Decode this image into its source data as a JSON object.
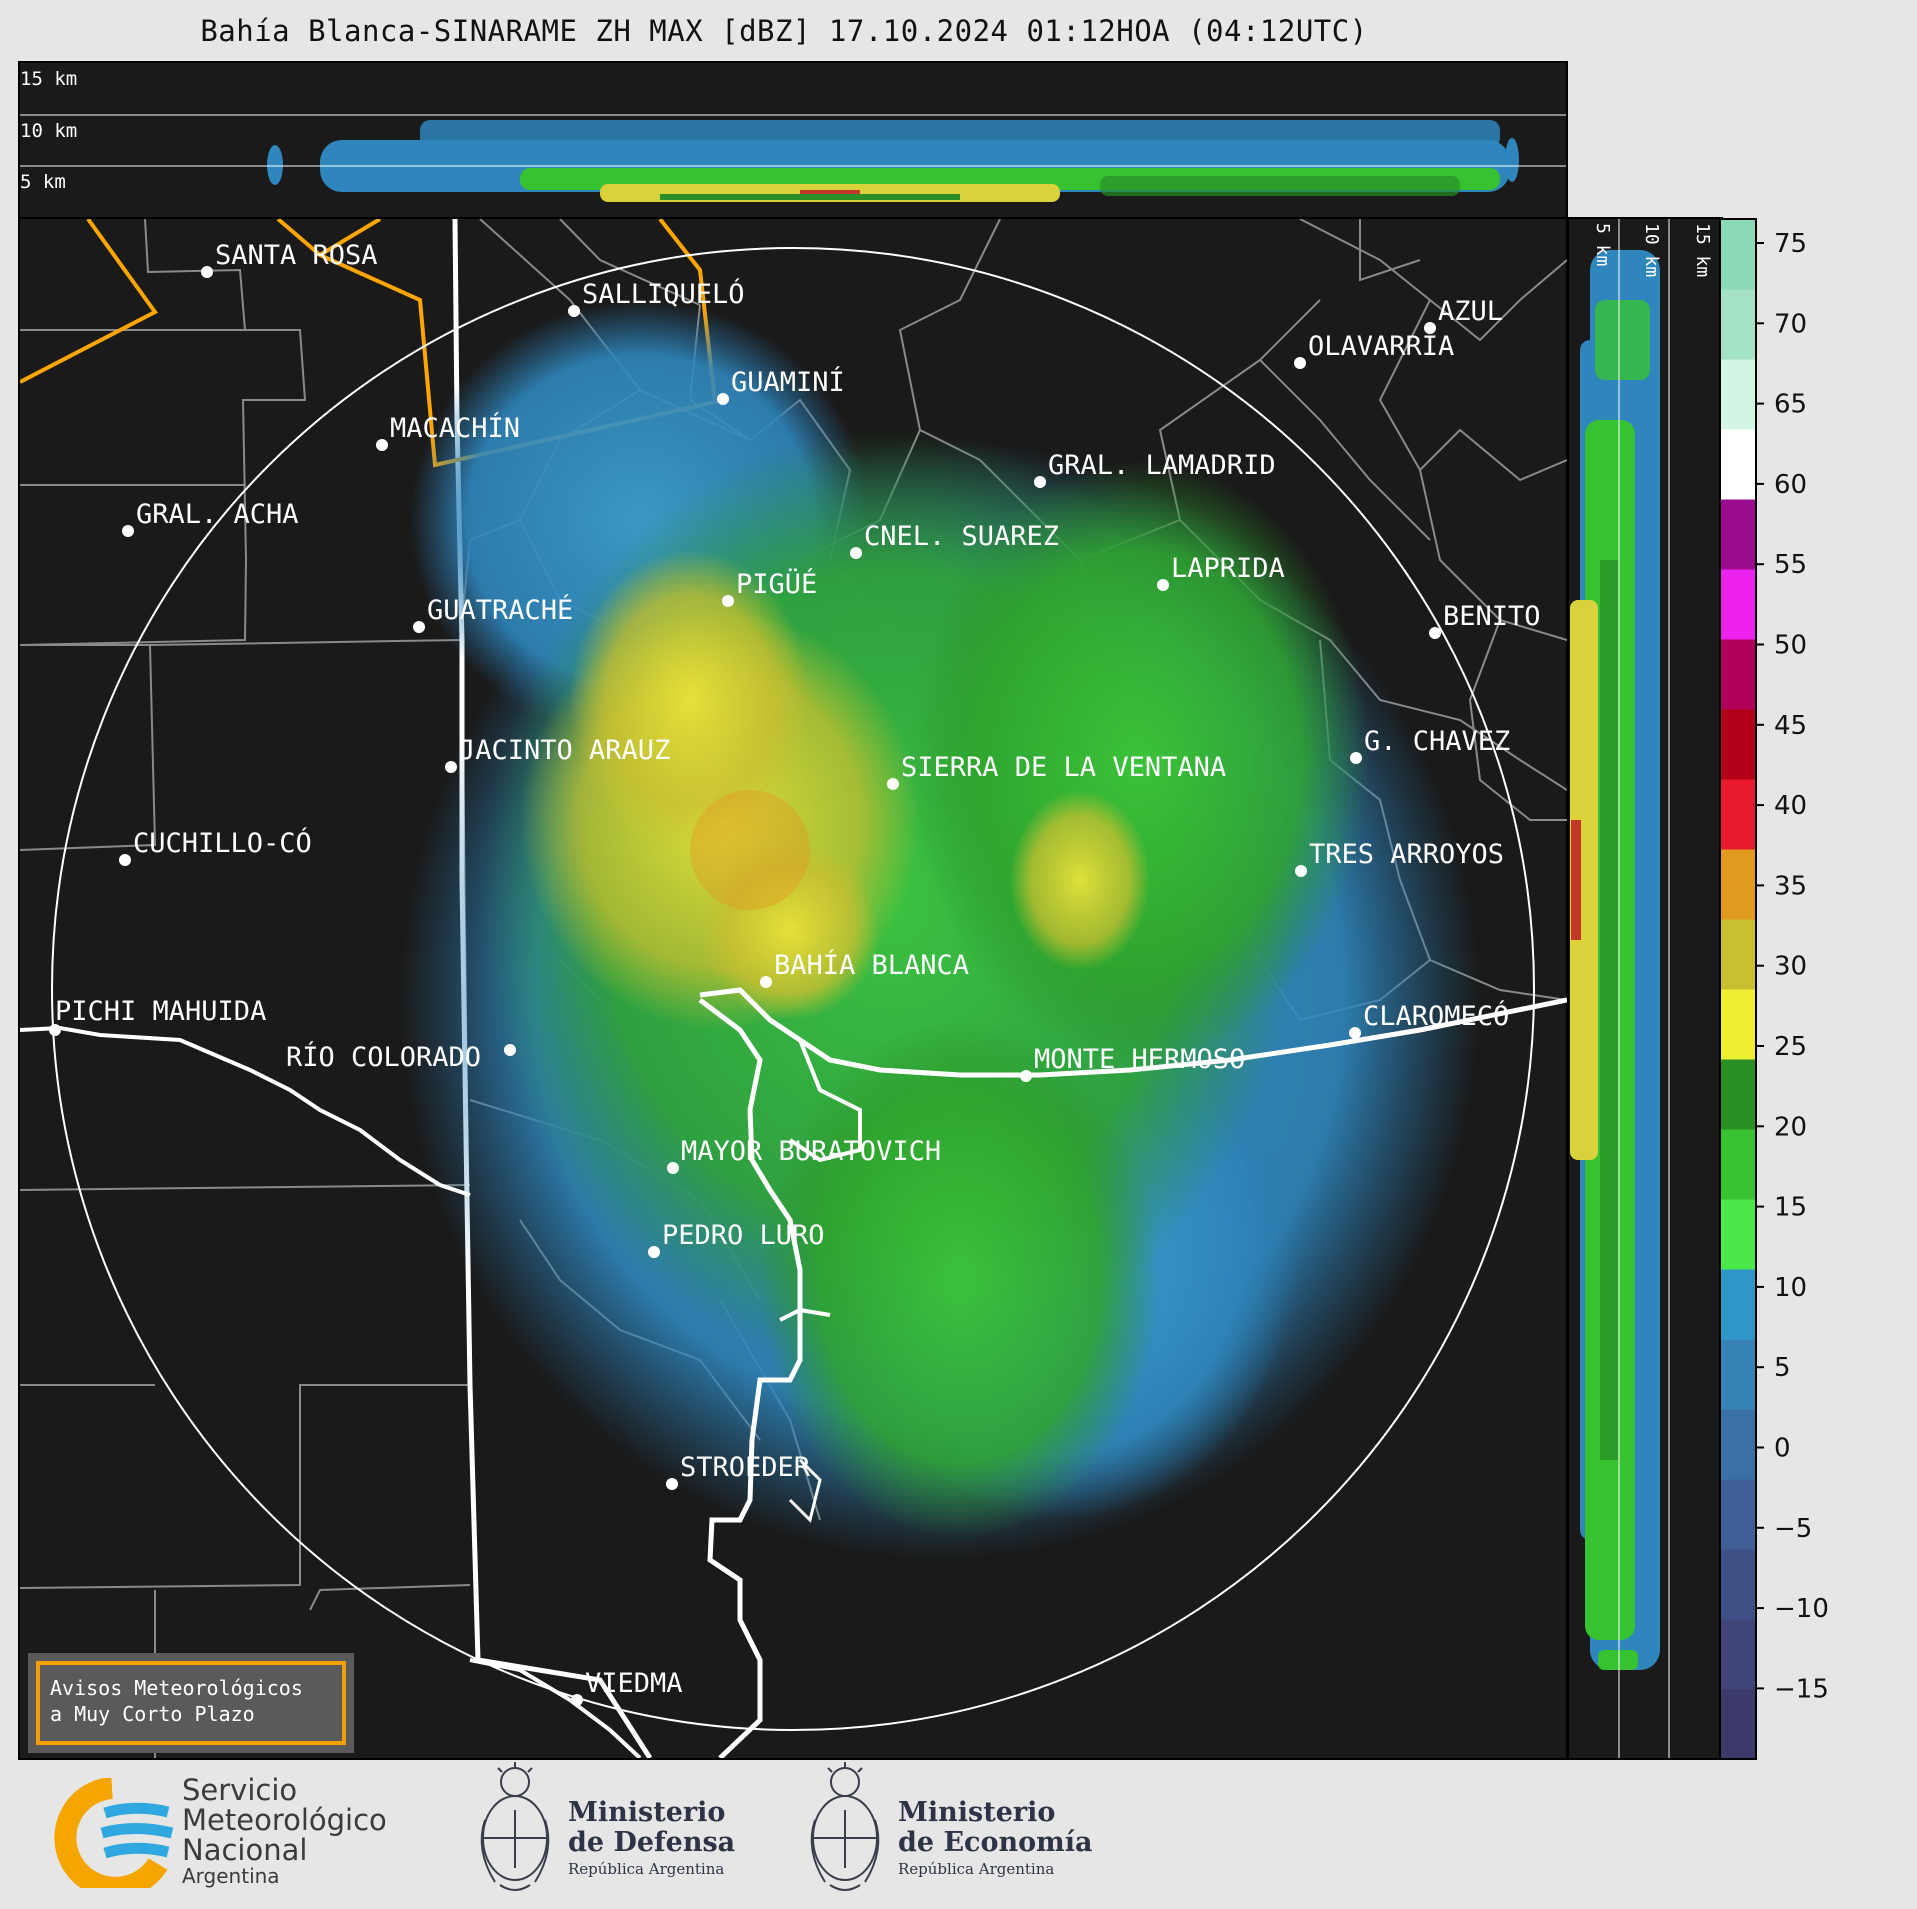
{
  "title": "Bahía Blanca-SINARAME ZH MAX [dBZ] 17.10.2024 01:12HOA (04:12UTC)",
  "top_panel": {
    "labels": [
      "15 km",
      "10 km",
      "5 km"
    ]
  },
  "side_panel": {
    "labels": [
      "5 km",
      "10 km",
      "15 km"
    ]
  },
  "colorbar": {
    "ticks": [
      "75",
      "70",
      "65",
      "60",
      "55",
      "50",
      "45",
      "40",
      "35",
      "30",
      "25",
      "20",
      "15",
      "10",
      "5",
      "0",
      "−5",
      "−10",
      "−15"
    ],
    "colors": [
      "#3b3a6a",
      "#404478",
      "#3d5186",
      "#3e6096",
      "#3a70a6",
      "#3883b6",
      "#2e97c8",
      "#4ae84a",
      "#37c232",
      "#2a8f27",
      "#eeee33",
      "#c9c031",
      "#e09a1e",
      "#ea1a2e",
      "#b30016",
      "#b0005a",
      "#ee22ee",
      "#9a0b8e",
      "#ffffff",
      "#d4f4e4",
      "#a4e2c4",
      "#8ad8b4"
    ]
  },
  "cities": [
    {
      "name": "SANTA ROSA"
    },
    {
      "name": "SALLIQUELÓ"
    },
    {
      "name": "AZUL"
    },
    {
      "name": "OLAVARRÍA"
    },
    {
      "name": "GUAMINÍ"
    },
    {
      "name": "MACACHÍN"
    },
    {
      "name": "GRAL. LAMADRID"
    },
    {
      "name": "GRAL. ACHA"
    },
    {
      "name": "CNEL. SUAREZ"
    },
    {
      "name": "LAPRIDA"
    },
    {
      "name": "PIGÜÉ"
    },
    {
      "name": "GUATRACHÉ"
    },
    {
      "name": "BENITO"
    },
    {
      "name": "JACINTO ARAUZ"
    },
    {
      "name": "G. CHAVEZ"
    },
    {
      "name": "SIERRA DE LA VENTANA"
    },
    {
      "name": "CUCHILLO-CÓ"
    },
    {
      "name": "TRES ARROYOS"
    },
    {
      "name": "BAHÍA BLANCA"
    },
    {
      "name": "PICHI MAHUIDA"
    },
    {
      "name": "CLAROMECÓ"
    },
    {
      "name": "RÍO COLORADO"
    },
    {
      "name": "MONTE HERMOSO"
    },
    {
      "name": "MAYOR BURATOVICH"
    },
    {
      "name": "PEDRO LURO"
    },
    {
      "name": "STROEDER"
    },
    {
      "name": "VIEDMA"
    }
  ],
  "avisos": {
    "line1": "Avisos Meteorológicos",
    "line2": "a Muy Corto Plazo"
  },
  "footer": {
    "smn": {
      "line1": "Servicio",
      "line2": "Meteorológico",
      "line3": "Nacional",
      "line4": "Argentina"
    },
    "defensa": {
      "line1": "Ministerio",
      "line2": "de Defensa",
      "line3": "República Argentina"
    },
    "economia": {
      "line1": "Ministerio",
      "line2": "de Economía",
      "line3": "República Argentina"
    }
  },
  "colors": {
    "map_bg": "#1a1a1a",
    "province_border": "#ffa500",
    "range_ring": "#ffffff"
  }
}
